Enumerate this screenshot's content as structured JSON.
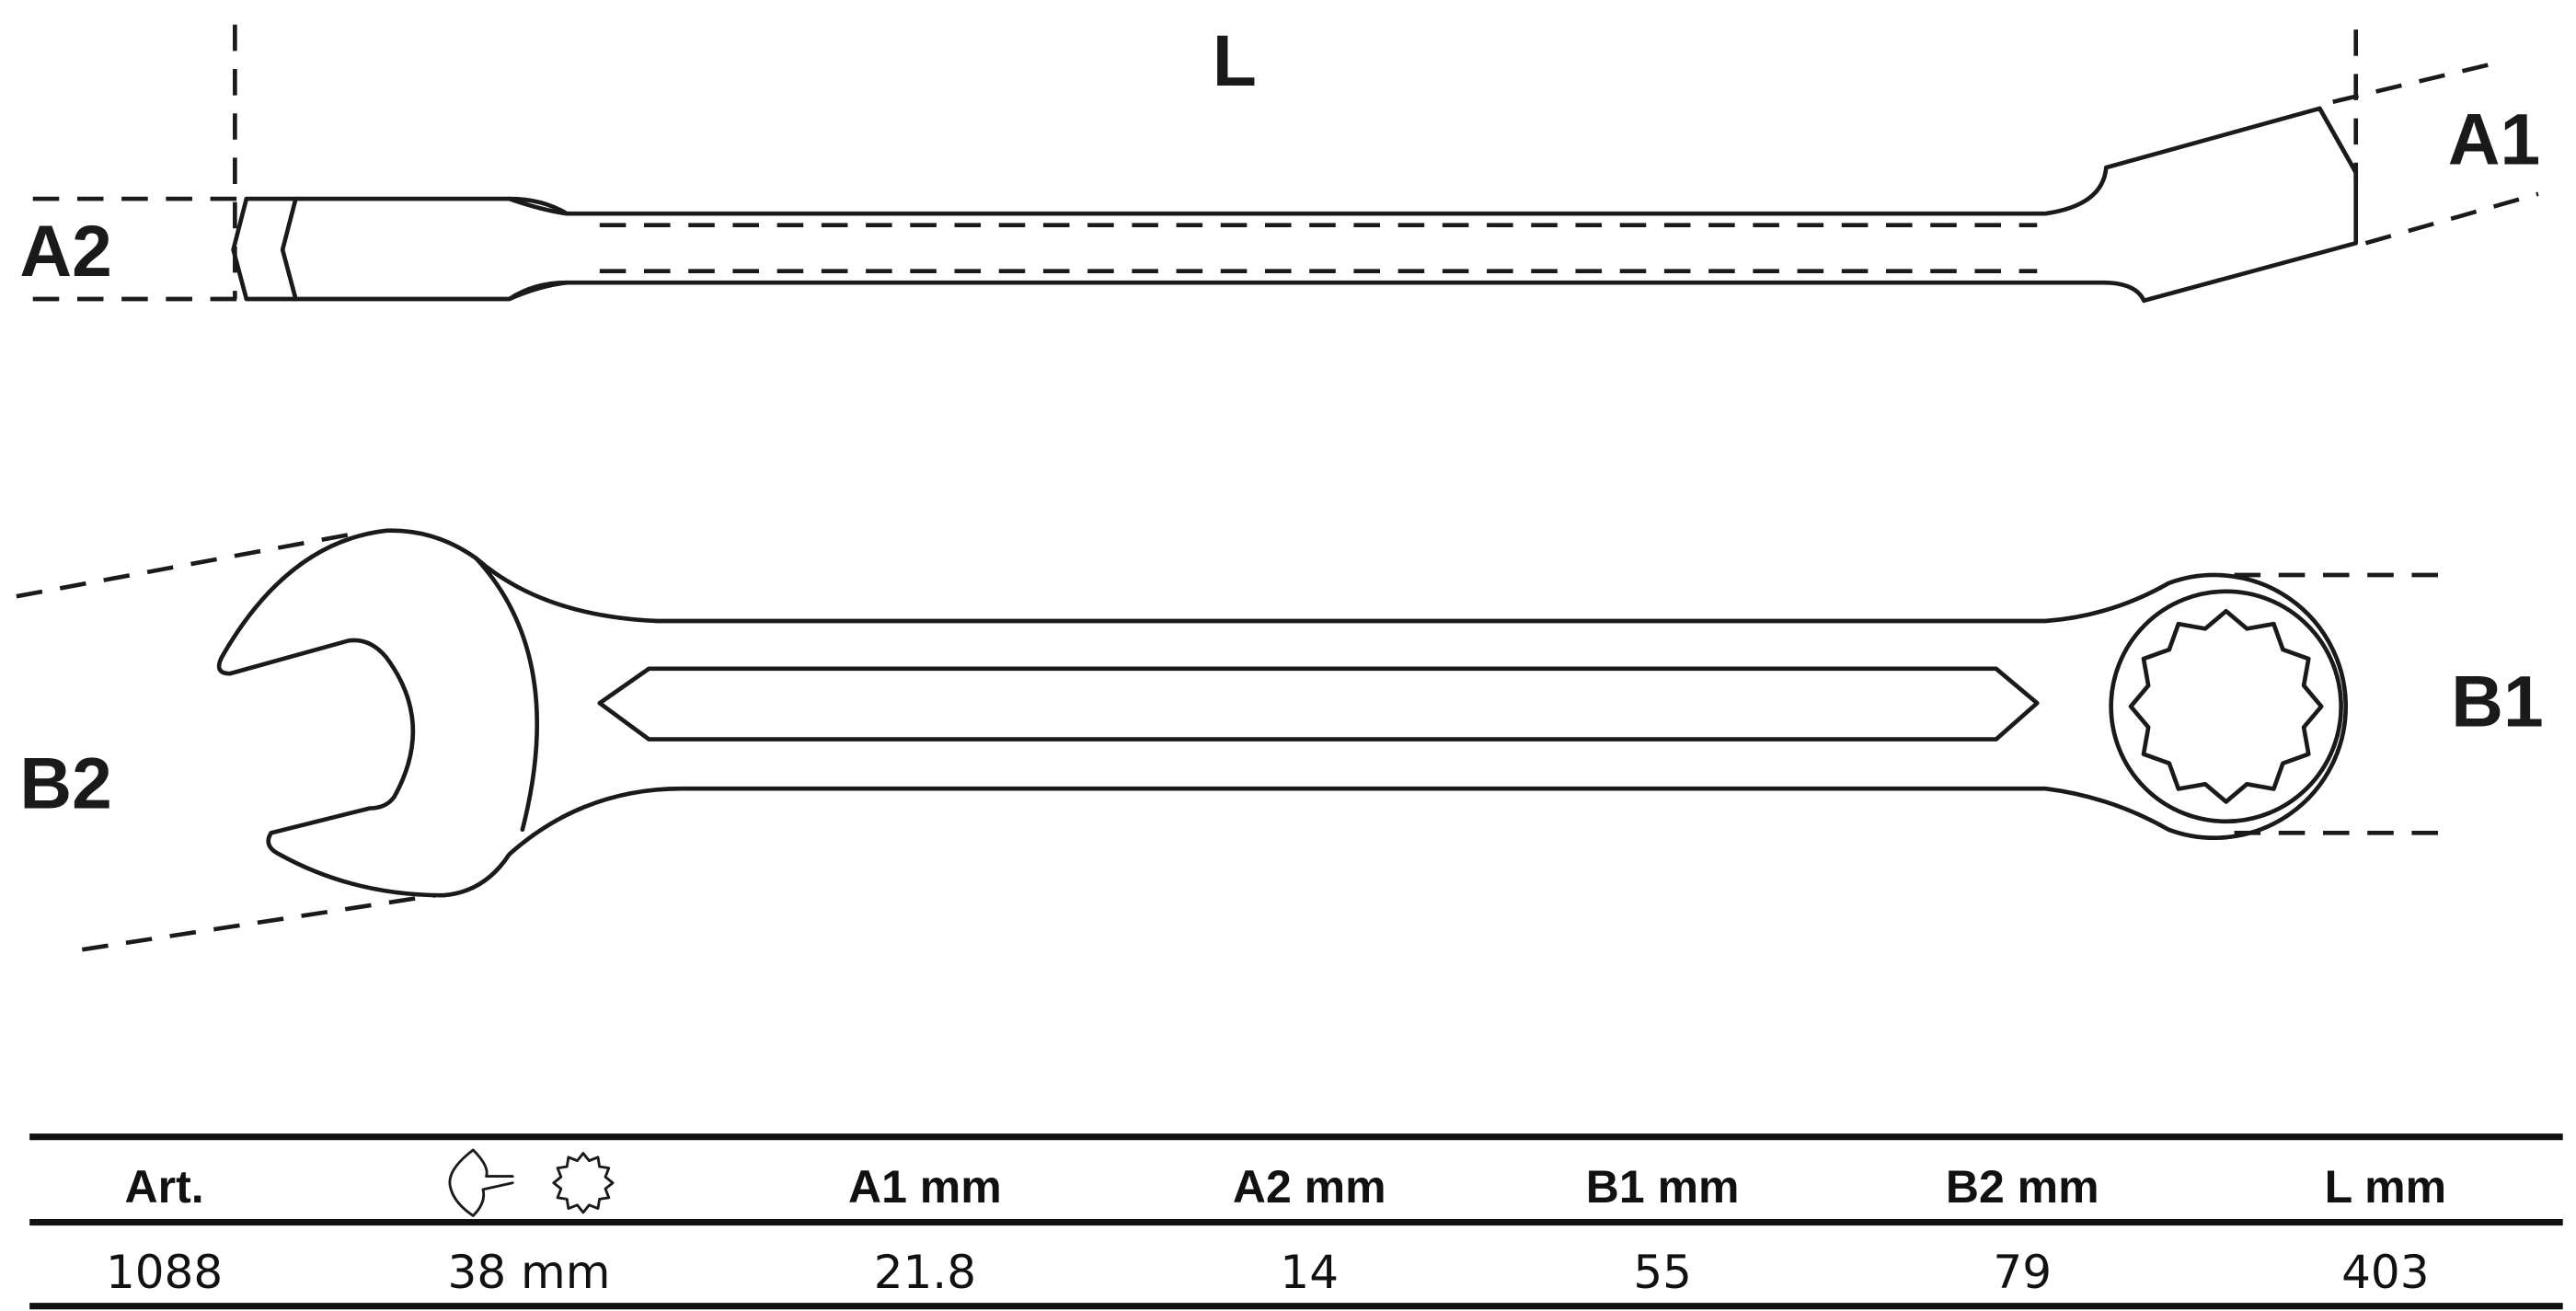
{
  "labels": {
    "L": "L",
    "A1": "A1",
    "A2": "A2",
    "B1": "B1",
    "B2": "B2"
  },
  "table": {
    "headers": [
      "Art.",
      "",
      "A1  mm",
      "A2  mm",
      "B1  mm",
      "B2  mm",
      "L  mm"
    ],
    "header_icons": [
      "open-end-wrench-icon",
      "twelve-point-ring-icon"
    ],
    "rows": [
      [
        "1088",
        "38 mm",
        "21.8",
        "14",
        "55",
        "79",
        "403"
      ]
    ]
  }
}
